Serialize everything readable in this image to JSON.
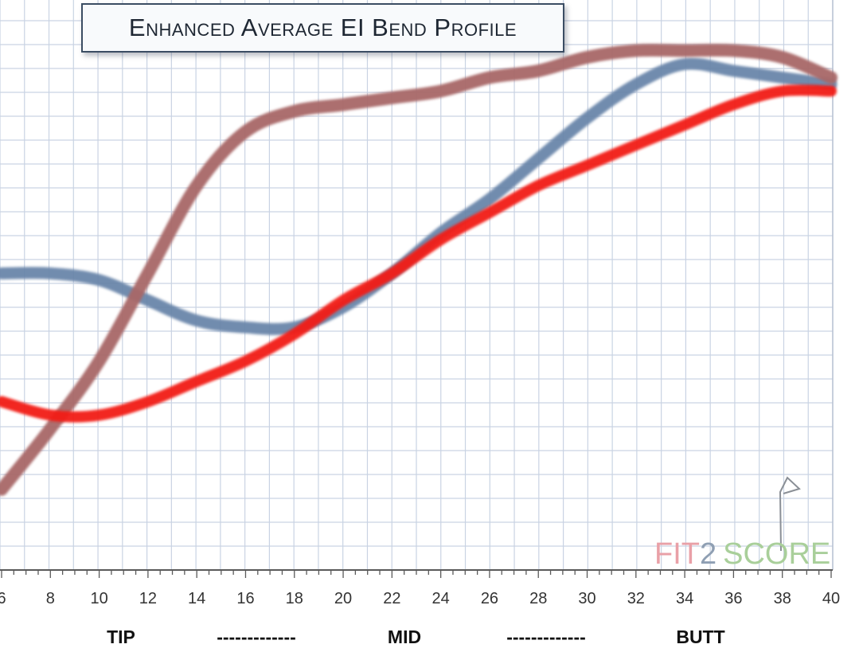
{
  "chart_data": {
    "type": "line",
    "title": "Enhanced Average EI Bend Profile",
    "xlabel": "",
    "ylabel": "",
    "x": [
      6,
      8,
      10,
      12,
      14,
      16,
      18,
      20,
      22,
      24,
      26,
      28,
      30,
      32,
      34,
      36,
      38,
      40
    ],
    "xlim": [
      6,
      40
    ],
    "ylim": [
      0,
      100
    ],
    "x_ticks": [
      "6",
      "8",
      "10",
      "12",
      "14",
      "16",
      "18",
      "20",
      "22",
      "24",
      "26",
      "28",
      "30",
      "32",
      "34",
      "36",
      "38",
      "40"
    ],
    "region_labels": [
      "TIP",
      "-------------",
      "MID",
      "-------------",
      "BUTT"
    ],
    "grid": true,
    "legend": "none",
    "series": [
      {
        "color": "#6a86aa",
        "values": [
          43,
          43,
          42,
          39,
          36,
          35,
          35,
          38,
          43,
          49,
          54,
          60,
          66,
          71,
          74,
          73,
          72,
          71
        ]
      },
      {
        "color": "#a86868",
        "values": [
          11,
          20,
          30,
          43,
          56,
          64,
          67,
          68,
          69,
          70,
          72,
          73,
          75,
          76,
          76,
          76,
          75,
          72
        ]
      },
      {
        "color": "#f21c14",
        "values": [
          24,
          22,
          22,
          24,
          27,
          30,
          34,
          39,
          43,
          48,
          52,
          56,
          59,
          62,
          65,
          68,
          70,
          70
        ]
      }
    ]
  },
  "watermark": {
    "part1": "FIT",
    "part2": "2",
    "part3": "SCORE"
  }
}
